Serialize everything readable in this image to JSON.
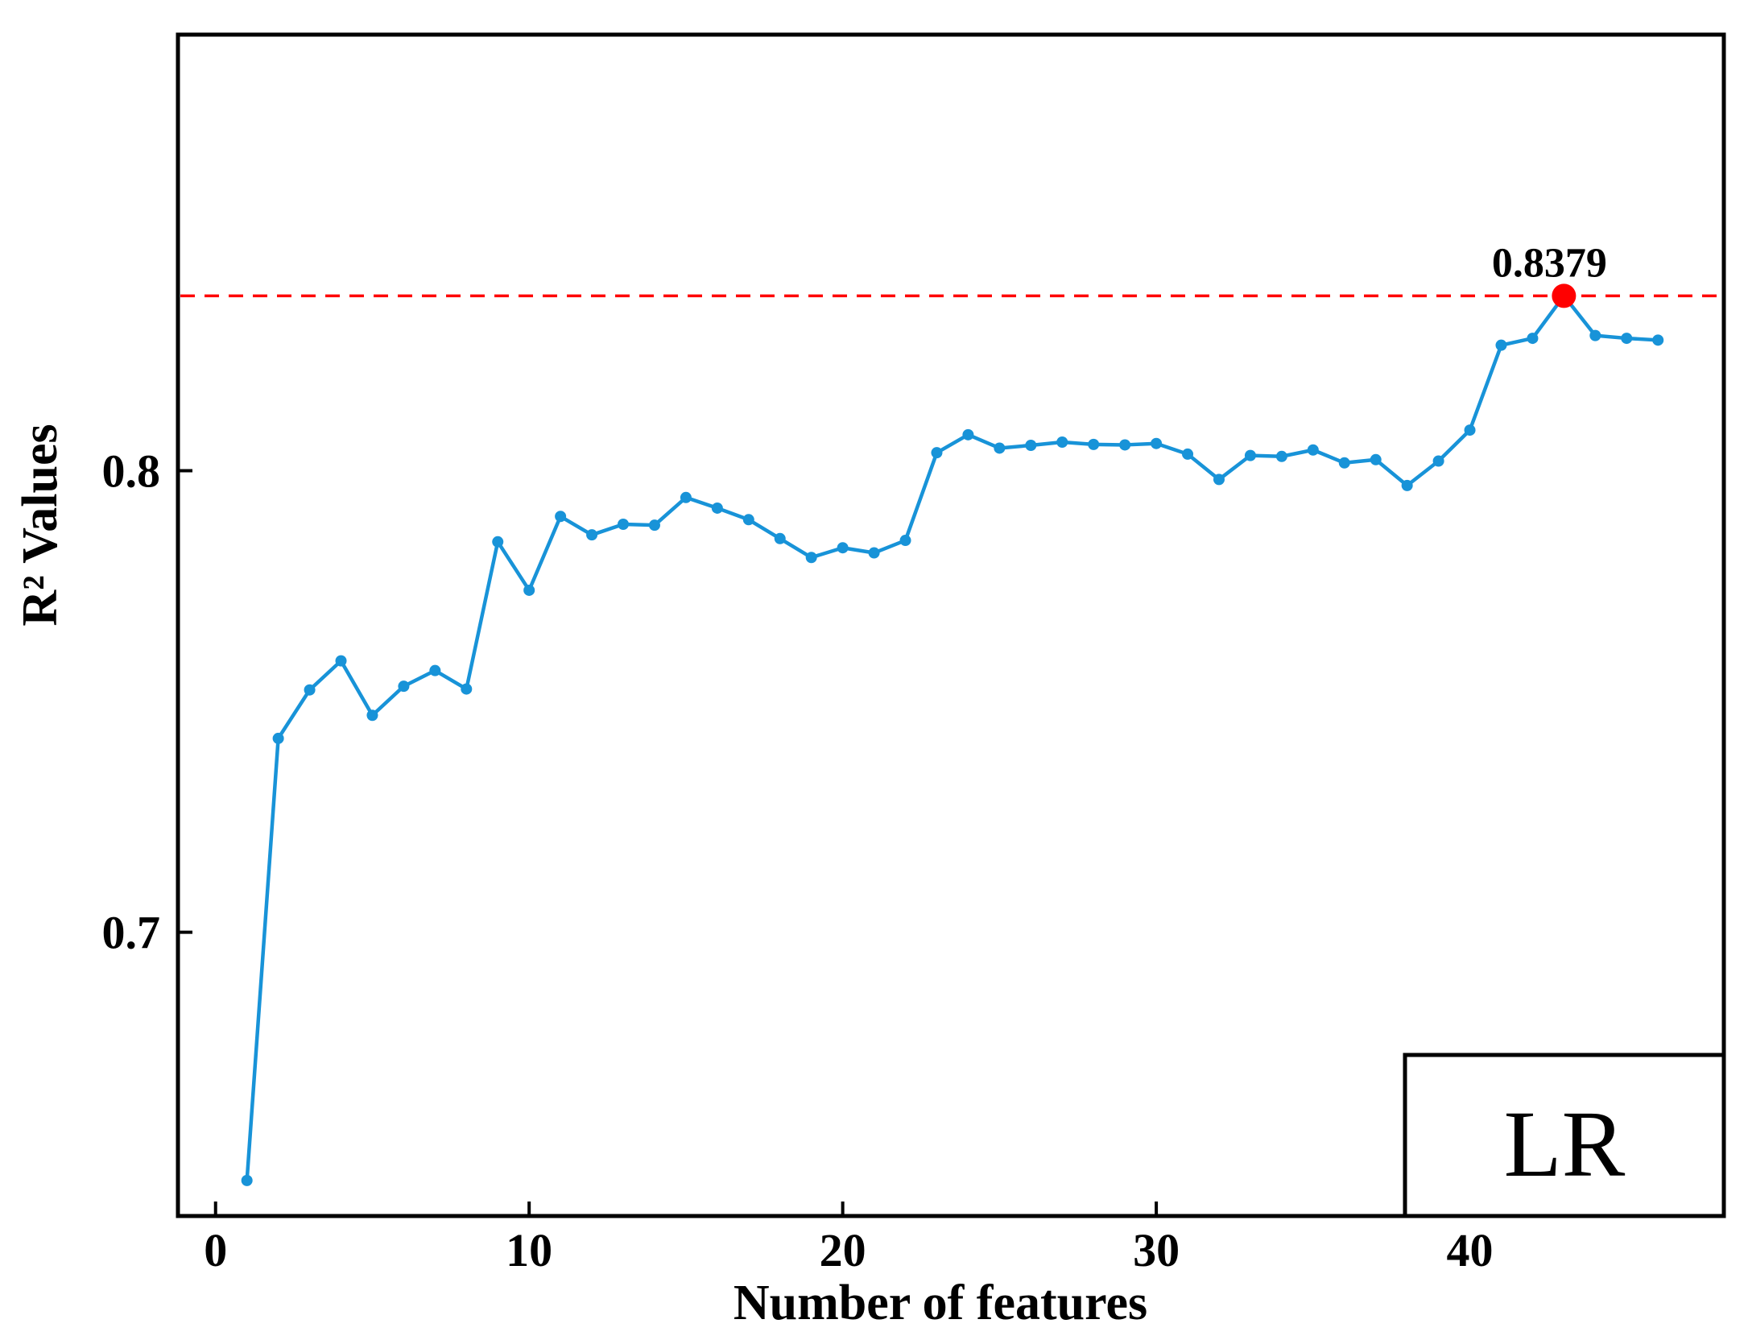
{
  "chart_data": {
    "type": "line",
    "title": "",
    "xlabel": "Number of features",
    "ylabel": "R² Values",
    "xlim": [
      -1.2,
      48.1
    ],
    "ylim": [
      0.6385,
      0.8945
    ],
    "xticks": [
      0,
      10,
      20,
      30,
      40
    ],
    "xtick_labels": [
      "0",
      "10",
      "20",
      "30",
      "40"
    ],
    "yticks": [
      0.7,
      0.8
    ],
    "ytick_labels": [
      "0.7",
      "0.8"
    ],
    "grid": false,
    "legend": "none",
    "line_color": "#1893d8",
    "highlight_color": "#ff0000",
    "reference_line": {
      "y": 0.8379,
      "style": "dashed",
      "color": "#ff0000"
    },
    "annotation": {
      "text": "0.8379",
      "x": 43,
      "y": 0.8379
    },
    "box_label": "LR",
    "series": [
      {
        "x": [
          1,
          2,
          3,
          4,
          5,
          6,
          7,
          8,
          9,
          10,
          11,
          12,
          13,
          14,
          15,
          16,
          17,
          18,
          19,
          20,
          21,
          22,
          23,
          24,
          25,
          26,
          27,
          28,
          29,
          30,
          31,
          32,
          33,
          34,
          35,
          36,
          37,
          38,
          39,
          40,
          41,
          42,
          43,
          44,
          45,
          46
        ],
        "values": [
          0.6462,
          0.742,
          0.7525,
          0.7588,
          0.747,
          0.7533,
          0.7567,
          0.7527,
          0.7846,
          0.7741,
          0.7901,
          0.7861,
          0.7884,
          0.7882,
          0.7942,
          0.7919,
          0.7894,
          0.7853,
          0.7812,
          0.7833,
          0.7822,
          0.7849,
          0.8039,
          0.8078,
          0.8049,
          0.8055,
          0.8062,
          0.8057,
          0.8056,
          0.8059,
          0.8036,
          0.7981,
          0.8033,
          0.8031,
          0.8045,
          0.8017,
          0.8024,
          0.7968,
          0.8021,
          0.8088,
          0.8272,
          0.8287,
          0.8379,
          0.8293,
          0.8287,
          0.8283
        ]
      }
    ]
  }
}
